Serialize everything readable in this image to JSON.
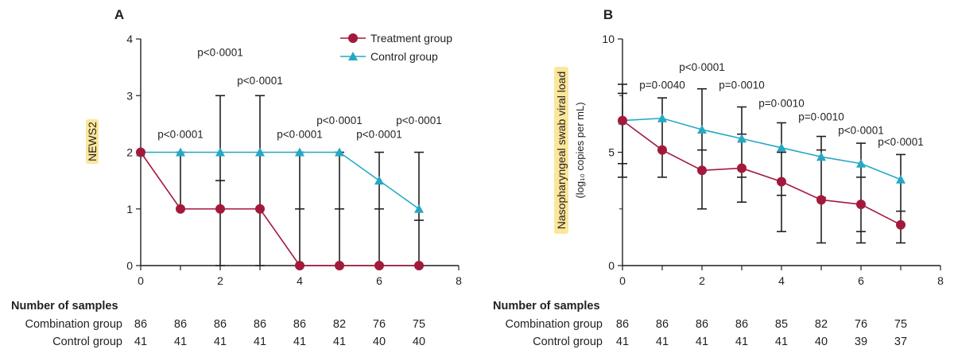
{
  "colors": {
    "treatment": "#a3193c",
    "control": "#26a8c4",
    "axis": "#231f20",
    "highlight": "#fbe69a"
  },
  "legend": {
    "treatment_label": "Treatment group",
    "control_label": "Control group"
  },
  "samples": {
    "title": "Number of samples",
    "combination_label": "Combination group",
    "control_label": "Control group"
  },
  "chart_data": [
    {
      "id": "A",
      "type": "line",
      "panel_label": "A",
      "title": "",
      "xlabel": "",
      "ylabel": "NEWS2",
      "xlim": [
        0,
        8
      ],
      "ylim": [
        0,
        4
      ],
      "x_ticks": [
        "0",
        "2",
        "4",
        "6",
        "8"
      ],
      "y_ticks": [
        "0",
        "1",
        "2",
        "3",
        "4"
      ],
      "x": [
        0,
        1,
        2,
        3,
        4,
        5,
        6,
        7
      ],
      "series": [
        {
          "name": "Treatment group",
          "values": [
            2,
            1,
            1,
            1,
            0,
            0,
            0,
            0
          ],
          "marker": "circle"
        },
        {
          "name": "Control group",
          "values": [
            2,
            2,
            2,
            2,
            2,
            2,
            1.5,
            1
          ],
          "marker": "triangle"
        }
      ],
      "error_bars": [
        {
          "x": 0,
          "low": 2,
          "high": 2
        },
        {
          "x": 1,
          "low": 1,
          "high": 2
        },
        {
          "x": 2,
          "low": 0,
          "high": 3,
          "extra_ticks": [
            1.5
          ]
        },
        {
          "x": 3,
          "low": 0,
          "high": 3
        },
        {
          "x": 4,
          "low": 0,
          "high": 2,
          "extra_ticks": [
            1
          ]
        },
        {
          "x": 5,
          "low": 0,
          "high": 2,
          "extra_ticks": [
            1
          ]
        },
        {
          "x": 6,
          "low": 0,
          "high": 2,
          "extra_ticks": [
            1
          ]
        },
        {
          "x": 7,
          "low": 0,
          "high": 2,
          "extra_ticks": [
            0.8
          ]
        }
      ],
      "p_values": [
        {
          "x": 1,
          "y": 2.25,
          "label": "p<0·0001"
        },
        {
          "x": 2,
          "y": 3.7,
          "label": "p<0·0001"
        },
        {
          "x": 3,
          "y": 3.2,
          "label": "p<0·0001"
        },
        {
          "x": 4,
          "y": 2.25,
          "label": "p<0·0001"
        },
        {
          "x": 5,
          "y": 2.5,
          "label": "p<0·0001"
        },
        {
          "x": 6,
          "y": 2.25,
          "label": "p<0·0001"
        },
        {
          "x": 7,
          "y": 2.5,
          "label": "p<0·0001"
        }
      ],
      "samples_x": [
        0,
        1,
        2,
        3,
        4,
        5,
        6,
        7
      ],
      "samples_combination": [
        "86",
        "86",
        "86",
        "86",
        "86",
        "82",
        "76",
        "75"
      ],
      "samples_control": [
        "41",
        "41",
        "41",
        "41",
        "41",
        "41",
        "40",
        "40"
      ]
    },
    {
      "id": "B",
      "type": "line",
      "panel_label": "B",
      "title": "",
      "xlabel": "",
      "ylabel": "Nasopharyngeal swab viral load",
      "ylabel_sub": "(log₁₀ copies per mL)",
      "xlim": [
        0,
        8
      ],
      "ylim": [
        0,
        10
      ],
      "x_ticks": [
        "0",
        "2",
        "4",
        "6",
        "8"
      ],
      "y_ticks": [
        "0",
        "5",
        "10"
      ],
      "y_tick_values": [
        0,
        5,
        10
      ],
      "x": [
        0,
        1,
        2,
        3,
        4,
        5,
        6,
        7
      ],
      "series": [
        {
          "name": "Treatment group",
          "values": [
            6.4,
            5.1,
            4.2,
            4.3,
            3.7,
            2.9,
            2.7,
            1.8
          ],
          "marker": "circle"
        },
        {
          "name": "Control group",
          "values": [
            6.4,
            6.5,
            6.0,
            5.6,
            5.2,
            4.8,
            4.5,
            3.8
          ],
          "marker": "triangle"
        }
      ],
      "error_bars": [
        {
          "x": 0,
          "low": 3.9,
          "high": 8.0,
          "extra_ticks": [
            4.5,
            7.6
          ]
        },
        {
          "x": 1,
          "low": 3.9,
          "high": 7.4
        },
        {
          "x": 2,
          "low": 2.5,
          "high": 7.8,
          "extra_ticks": [
            5.1
          ]
        },
        {
          "x": 3,
          "low": 2.8,
          "high": 7.0,
          "extra_ticks": [
            3.9,
            5.8
          ]
        },
        {
          "x": 4,
          "low": 1.5,
          "high": 6.3,
          "extra_ticks": [
            3.1,
            5.0
          ]
        },
        {
          "x": 5,
          "low": 1.0,
          "high": 5.7,
          "extra_ticks": [
            3.0,
            5.1
          ]
        },
        {
          "x": 6,
          "low": 1.0,
          "high": 5.4,
          "extra_ticks": [
            1.5,
            3.9
          ]
        },
        {
          "x": 7,
          "low": 1.0,
          "high": 4.9,
          "extra_ticks": [
            2.4
          ]
        }
      ],
      "p_values": [
        {
          "x": 1,
          "y": 7.8,
          "label": "p=0·0040"
        },
        {
          "x": 2,
          "y": 8.6,
          "label": "p<0·0001"
        },
        {
          "x": 3,
          "y": 7.8,
          "label": "p=0·0010"
        },
        {
          "x": 4,
          "y": 7.0,
          "label": "p=0·0010"
        },
        {
          "x": 5,
          "y": 6.4,
          "label": "p=0·0010"
        },
        {
          "x": 6,
          "y": 5.8,
          "label": "p<0·0001"
        },
        {
          "x": 7,
          "y": 5.3,
          "label": "p<0·0001"
        }
      ],
      "samples_x": [
        0,
        1,
        2,
        3,
        4,
        5,
        6,
        7
      ],
      "samples_combination": [
        "86",
        "86",
        "86",
        "86",
        "85",
        "82",
        "76",
        "75"
      ],
      "samples_control": [
        "41",
        "41",
        "41",
        "41",
        "41",
        "40",
        "39",
        "37"
      ]
    }
  ]
}
